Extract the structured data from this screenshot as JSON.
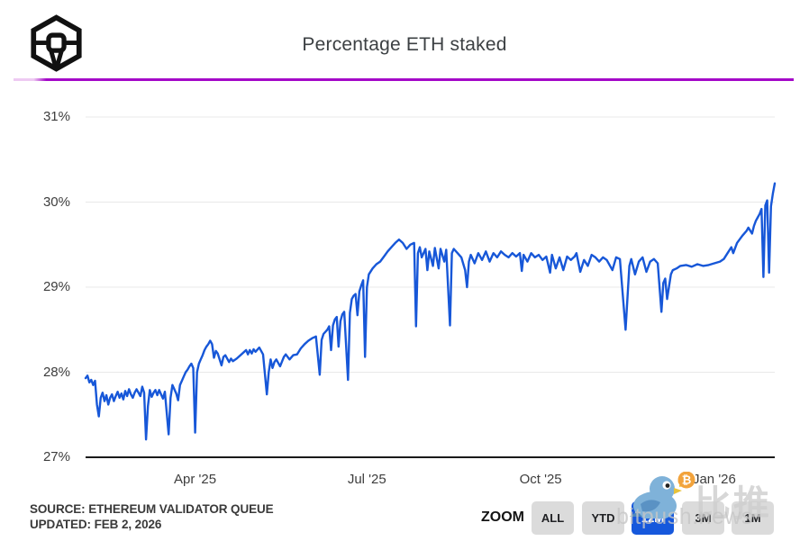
{
  "header": {
    "title": "Percentage ETH staked",
    "logo_name": "block-cube-logo",
    "divider_color_main": "#a409c8",
    "divider_color_fade": "#eecaf2"
  },
  "chart_data": {
    "type": "line",
    "title": "Percentage ETH staked",
    "series_name": "Percentage ETH staked",
    "unit": "%",
    "line_color": "#1757d8",
    "grid": true,
    "ylim": [
      27,
      31
    ],
    "y_ticks": [
      {
        "label": "31%",
        "value": 31
      },
      {
        "label": "30%",
        "value": 30
      },
      {
        "label": "29%",
        "value": 29
      },
      {
        "label": "28%",
        "value": 28
      },
      {
        "label": "27%",
        "value": 27
      }
    ],
    "x_days_total": 365,
    "x_ticks": [
      {
        "label": "Apr '25",
        "day": 58
      },
      {
        "label": "Jul '25",
        "day": 149
      },
      {
        "label": "Oct '25",
        "day": 241
      },
      {
        "label": "Jan '26",
        "day": 333
      }
    ],
    "points": [
      [
        0,
        27.93
      ],
      [
        1,
        27.96
      ],
      [
        2,
        27.88
      ],
      [
        3,
        27.91
      ],
      [
        4,
        27.85
      ],
      [
        5,
        27.9
      ],
      [
        6,
        27.62
      ],
      [
        7,
        27.48
      ],
      [
        8,
        27.7
      ],
      [
        9,
        27.76
      ],
      [
        10,
        27.66
      ],
      [
        11,
        27.73
      ],
      [
        12,
        27.62
      ],
      [
        13,
        27.7
      ],
      [
        14,
        27.74
      ],
      [
        15,
        27.66
      ],
      [
        16,
        27.72
      ],
      [
        17,
        27.77
      ],
      [
        18,
        27.7
      ],
      [
        19,
        27.75
      ],
      [
        20,
        27.68
      ],
      [
        21,
        27.78
      ],
      [
        22,
        27.72
      ],
      [
        23,
        27.8
      ],
      [
        24,
        27.74
      ],
      [
        25,
        27.7
      ],
      [
        26,
        27.76
      ],
      [
        27,
        27.8
      ],
      [
        28,
        27.76
      ],
      [
        29,
        27.72
      ],
      [
        30,
        27.83
      ],
      [
        31,
        27.76
      ],
      [
        32,
        27.21
      ],
      [
        33,
        27.6
      ],
      [
        34,
        27.79
      ],
      [
        35,
        27.71
      ],
      [
        36,
        27.76
      ],
      [
        37,
        27.79
      ],
      [
        38,
        27.73
      ],
      [
        39,
        27.79
      ],
      [
        40,
        27.74
      ],
      [
        41,
        27.69
      ],
      [
        42,
        27.77
      ],
      [
        44,
        27.27
      ],
      [
        45,
        27.7
      ],
      [
        46,
        27.85
      ],
      [
        47,
        27.8
      ],
      [
        48,
        27.75
      ],
      [
        49,
        27.67
      ],
      [
        50,
        27.85
      ],
      [
        51,
        27.9
      ],
      [
        52,
        27.95
      ],
      [
        53,
        28.0
      ],
      [
        54,
        28.03
      ],
      [
        55,
        28.07
      ],
      [
        56,
        28.1
      ],
      [
        57,
        28.05
      ],
      [
        58,
        27.29
      ],
      [
        59,
        28.0
      ],
      [
        60,
        28.1
      ],
      [
        61,
        28.15
      ],
      [
        62,
        28.2
      ],
      [
        63,
        28.26
      ],
      [
        64,
        28.3
      ],
      [
        65,
        28.33
      ],
      [
        66,
        28.37
      ],
      [
        67,
        28.33
      ],
      [
        68,
        28.17
      ],
      [
        69,
        28.25
      ],
      [
        70,
        28.22
      ],
      [
        72,
        28.08
      ],
      [
        73,
        28.18
      ],
      [
        74,
        28.2
      ],
      [
        76,
        28.12
      ],
      [
        77,
        28.16
      ],
      [
        78,
        28.13
      ],
      [
        80,
        28.16
      ],
      [
        82,
        28.2
      ],
      [
        84,
        28.24
      ],
      [
        85,
        28.26
      ],
      [
        86,
        28.21
      ],
      [
        87,
        28.26
      ],
      [
        88,
        28.22
      ],
      [
        89,
        28.27
      ],
      [
        90,
        28.24
      ],
      [
        92,
        28.29
      ],
      [
        94,
        28.21
      ],
      [
        96,
        27.74
      ],
      [
        97,
        28.0
      ],
      [
        98,
        28.15
      ],
      [
        99,
        28.05
      ],
      [
        100,
        28.12
      ],
      [
        101,
        28.15
      ],
      [
        103,
        28.07
      ],
      [
        105,
        28.18
      ],
      [
        106,
        28.21
      ],
      [
        108,
        28.15
      ],
      [
        110,
        28.2
      ],
      [
        112,
        28.21
      ],
      [
        114,
        28.28
      ],
      [
        116,
        28.33
      ],
      [
        118,
        28.37
      ],
      [
        120,
        28.4
      ],
      [
        122,
        28.42
      ],
      [
        124,
        27.97
      ],
      [
        125,
        28.38
      ],
      [
        126,
        28.45
      ],
      [
        128,
        28.5
      ],
      [
        129,
        28.54
      ],
      [
        130,
        28.26
      ],
      [
        131,
        28.55
      ],
      [
        132,
        28.62
      ],
      [
        133,
        28.65
      ],
      [
        134,
        28.3
      ],
      [
        135,
        28.6
      ],
      [
        136,
        28.68
      ],
      [
        137,
        28.71
      ],
      [
        139,
        27.91
      ],
      [
        140,
        28.7
      ],
      [
        141,
        28.86
      ],
      [
        142,
        28.9
      ],
      [
        143,
        28.92
      ],
      [
        144,
        28.67
      ],
      [
        145,
        28.95
      ],
      [
        146,
        29.02
      ],
      [
        147,
        29.08
      ],
      [
        148,
        28.18
      ],
      [
        149,
        29.0
      ],
      [
        150,
        29.15
      ],
      [
        152,
        29.22
      ],
      [
        154,
        29.27
      ],
      [
        156,
        29.3
      ],
      [
        158,
        29.36
      ],
      [
        160,
        29.42
      ],
      [
        162,
        29.47
      ],
      [
        164,
        29.52
      ],
      [
        166,
        29.56
      ],
      [
        168,
        29.52
      ],
      [
        170,
        29.45
      ],
      [
        172,
        29.5
      ],
      [
        174,
        29.52
      ],
      [
        175,
        28.54
      ],
      [
        176,
        29.4
      ],
      [
        177,
        29.47
      ],
      [
        178,
        29.35
      ],
      [
        180,
        29.45
      ],
      [
        181,
        29.2
      ],
      [
        182,
        29.42
      ],
      [
        184,
        29.25
      ],
      [
        185,
        29.46
      ],
      [
        187,
        29.22
      ],
      [
        188,
        29.45
      ],
      [
        190,
        29.3
      ],
      [
        191,
        29.44
      ],
      [
        193,
        28.55
      ],
      [
        194,
        29.4
      ],
      [
        195,
        29.45
      ],
      [
        197,
        29.4
      ],
      [
        199,
        29.35
      ],
      [
        201,
        29.2
      ],
      [
        202,
        29.0
      ],
      [
        203,
        29.3
      ],
      [
        204,
        29.38
      ],
      [
        206,
        29.28
      ],
      [
        208,
        29.4
      ],
      [
        210,
        29.32
      ],
      [
        212,
        29.42
      ],
      [
        214,
        29.3
      ],
      [
        216,
        29.4
      ],
      [
        218,
        29.35
      ],
      [
        220,
        29.42
      ],
      [
        222,
        29.38
      ],
      [
        224,
        29.35
      ],
      [
        226,
        29.4
      ],
      [
        228,
        29.36
      ],
      [
        230,
        29.4
      ],
      [
        231,
        29.19
      ],
      [
        232,
        29.38
      ],
      [
        234,
        29.3
      ],
      [
        236,
        29.4
      ],
      [
        238,
        29.35
      ],
      [
        240,
        29.38
      ],
      [
        242,
        29.32
      ],
      [
        244,
        29.36
      ],
      [
        246,
        29.17
      ],
      [
        247,
        29.38
      ],
      [
        249,
        29.22
      ],
      [
        251,
        29.35
      ],
      [
        253,
        29.2
      ],
      [
        255,
        29.36
      ],
      [
        257,
        29.32
      ],
      [
        259,
        29.36
      ],
      [
        260,
        29.4
      ],
      [
        262,
        29.18
      ],
      [
        264,
        29.32
      ],
      [
        266,
        29.25
      ],
      [
        268,
        29.38
      ],
      [
        270,
        29.35
      ],
      [
        272,
        29.3
      ],
      [
        274,
        29.35
      ],
      [
        276,
        29.32
      ],
      [
        279,
        29.2
      ],
      [
        281,
        29.35
      ],
      [
        283,
        29.33
      ],
      [
        286,
        28.5
      ],
      [
        288,
        29.25
      ],
      [
        289,
        29.33
      ],
      [
        291,
        29.15
      ],
      [
        293,
        29.3
      ],
      [
        295,
        29.35
      ],
      [
        297,
        29.18
      ],
      [
        299,
        29.3
      ],
      [
        301,
        29.33
      ],
      [
        303,
        29.28
      ],
      [
        305,
        28.71
      ],
      [
        306,
        29.05
      ],
      [
        307,
        29.1
      ],
      [
        308,
        28.86
      ],
      [
        310,
        29.15
      ],
      [
        311,
        29.2
      ],
      [
        313,
        29.22
      ],
      [
        315,
        29.25
      ],
      [
        318,
        29.26
      ],
      [
        321,
        29.24
      ],
      [
        324,
        29.27
      ],
      [
        327,
        29.25
      ],
      [
        330,
        29.26
      ],
      [
        333,
        29.28
      ],
      [
        336,
        29.3
      ],
      [
        338,
        29.33
      ],
      [
        340,
        29.4
      ],
      [
        342,
        29.47
      ],
      [
        343,
        29.4
      ],
      [
        345,
        29.52
      ],
      [
        347,
        29.58
      ],
      [
        348,
        29.61
      ],
      [
        350,
        29.66
      ],
      [
        351,
        29.7
      ],
      [
        353,
        29.63
      ],
      [
        354,
        29.72
      ],
      [
        355,
        29.78
      ],
      [
        356,
        29.82
      ],
      [
        357,
        29.86
      ],
      [
        358,
        29.92
      ],
      [
        359,
        29.12
      ],
      [
        360,
        29.96
      ],
      [
        361,
        30.02
      ],
      [
        362,
        29.17
      ],
      [
        363,
        29.95
      ],
      [
        364,
        30.1
      ],
      [
        365,
        30.22
      ]
    ]
  },
  "footer": {
    "source_line1": "SOURCE: ETHEREUM VALIDATOR QUEUE",
    "source_line2": "UPDATED: FEB 2, 2026"
  },
  "zoom_controls": {
    "label": "ZOOM",
    "button_color": "#dbdbdb",
    "selected_color": "#1658dc",
    "buttons": [
      {
        "label": "ALL",
        "selected": false
      },
      {
        "label": "YTD",
        "selected": false
      },
      {
        "label": "12M",
        "selected": true
      },
      {
        "label": "3M",
        "selected": false
      },
      {
        "label": "1M",
        "selected": false
      }
    ]
  },
  "watermark": {
    "cn_text": "比推",
    "en_text": "bitpush.news",
    "bird_icon": "bird-with-bitcoin-icon"
  }
}
